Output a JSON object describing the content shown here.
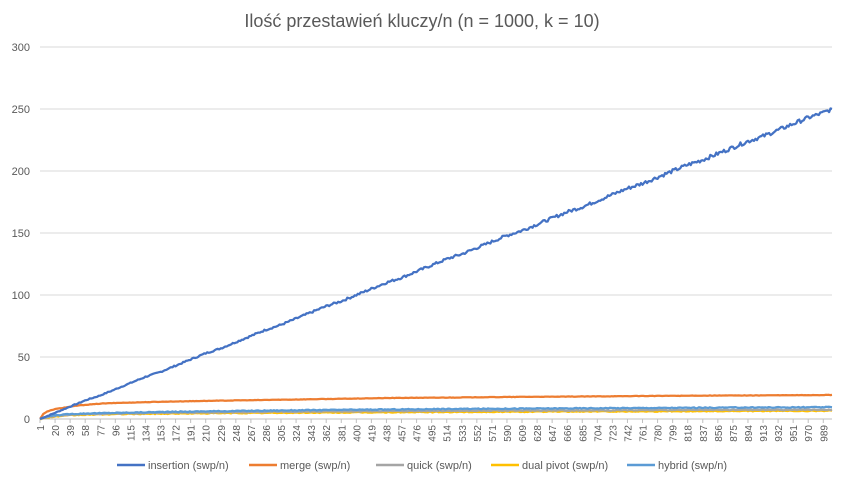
{
  "chart_data": {
    "type": "line",
    "title": "Ilość przestawień kluczy/n (n = 1000, k = 10)",
    "xlabel": "",
    "ylabel": "",
    "ylim": [
      0,
      300
    ],
    "yticks": [
      0,
      50,
      100,
      150,
      200,
      250,
      300
    ],
    "xlim": [
      1,
      1000
    ],
    "x_tick_labels": [
      "1",
      "20",
      "39",
      "58",
      "77",
      "96",
      "115",
      "134",
      "153",
      "172",
      "191",
      "210",
      "229",
      "248",
      "267",
      "286",
      "305",
      "324",
      "343",
      "362",
      "381",
      "400",
      "419",
      "438",
      "457",
      "476",
      "495",
      "514",
      "533",
      "552",
      "571",
      "590",
      "609",
      "628",
      "647",
      "666",
      "685",
      "704",
      "723",
      "742",
      "761",
      "780",
      "799",
      "818",
      "837",
      "856",
      "875",
      "894",
      "913",
      "932",
      "951",
      "970",
      "989"
    ],
    "grid": true,
    "legend_position": "bottom",
    "series": [
      {
        "name": "insertion (swp/n)",
        "color": "#4472c4",
        "x": [
          1,
          20,
          39,
          58,
          77,
          96,
          115,
          134,
          153,
          172,
          191,
          210,
          229,
          248,
          267,
          286,
          305,
          324,
          343,
          362,
          381,
          400,
          419,
          438,
          457,
          476,
          495,
          514,
          533,
          552,
          571,
          590,
          609,
          628,
          647,
          666,
          685,
          704,
          723,
          742,
          761,
          780,
          799,
          818,
          837,
          856,
          875,
          894,
          913,
          932,
          951,
          970,
          989,
          1000
        ],
        "y": [
          0,
          5,
          10,
          15,
          19,
          24,
          29,
          34,
          38,
          43,
          48,
          53,
          57,
          62,
          67,
          72,
          76,
          81,
          86,
          91,
          95,
          100,
          105,
          110,
          114,
          119,
          124,
          129,
          133,
          138,
          143,
          148,
          152,
          157,
          162,
          167,
          171,
          176,
          181,
          186,
          190,
          195,
          200,
          205,
          209,
          214,
          219,
          224,
          228,
          233,
          238,
          243,
          247,
          250
        ]
      },
      {
        "name": "merge (swp/n)",
        "color": "#ed7d31",
        "x": [
          1,
          5,
          10,
          20,
          30,
          40,
          50,
          60,
          80,
          100,
          130,
          160,
          200,
          250,
          300,
          350,
          400,
          450,
          500,
          550,
          600,
          650,
          700,
          750,
          800,
          850,
          900,
          950,
          1000
        ],
        "y": [
          0,
          4,
          6,
          8,
          9,
          10,
          11,
          11.5,
          12.5,
          13,
          13.5,
          14,
          14.5,
          15,
          15.5,
          16,
          16.5,
          17,
          17.2,
          17.5,
          17.8,
          18,
          18.2,
          18.5,
          18.7,
          18.9,
          19,
          19.2,
          19.4
        ]
      },
      {
        "name": "quick (swp/n)",
        "color": "#a5a5a5",
        "x": [
          1,
          10,
          20,
          40,
          60,
          100,
          150,
          200,
          300,
          400,
          500,
          600,
          700,
          800,
          900,
          1000
        ],
        "y": [
          0,
          1.5,
          2.5,
          3.5,
          4,
          4.5,
          5,
          5.3,
          5.8,
          6.2,
          6.5,
          6.8,
          7,
          7.2,
          7.4,
          7.5
        ]
      },
      {
        "name": "dual pivot (swp/n)",
        "color": "#ffc000",
        "x": [
          1,
          10,
          20,
          40,
          60,
          100,
          150,
          200,
          300,
          400,
          500,
          600,
          700,
          800,
          900,
          1000
        ],
        "y": [
          0,
          1.2,
          2,
          3,
          3.5,
          4,
          4.3,
          4.6,
          5,
          5.3,
          5.6,
          5.9,
          6.1,
          6.3,
          6.5,
          6.6
        ]
      },
      {
        "name": "hybrid (swp/n)",
        "color": "#5b9bd5",
        "x": [
          1,
          10,
          20,
          40,
          60,
          100,
          150,
          200,
          300,
          400,
          500,
          600,
          700,
          800,
          900,
          1000
        ],
        "y": [
          0,
          2,
          3,
          4,
          4.5,
          5,
          5.6,
          6.1,
          6.9,
          7.5,
          8,
          8.4,
          8.7,
          9,
          9.3,
          9.5
        ]
      }
    ]
  }
}
